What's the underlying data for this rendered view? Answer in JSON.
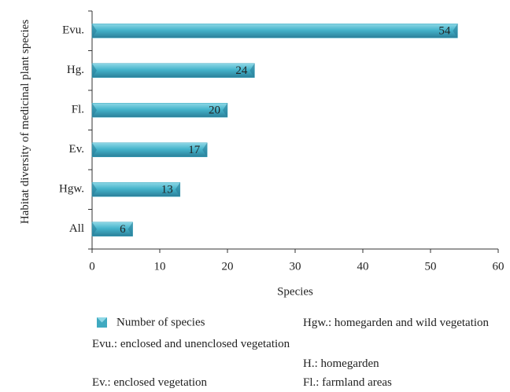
{
  "chart_data": {
    "type": "bar",
    "categories": [
      "Evu.",
      "Hg.",
      "Fl.",
      "Ev.",
      "Hgw.",
      "All"
    ],
    "series": [
      {
        "name": "Number of species",
        "color": "#3fa9c0",
        "values": [
          54,
          24,
          20,
          17,
          13,
          6
        ]
      }
    ],
    "xlim": [
      0,
      60
    ],
    "xticks": [
      0,
      10,
      20,
      30,
      40,
      50,
      60
    ],
    "x_label": "Species",
    "y_label": "Habitat diversity of medicinal plant species",
    "notes": [
      "Evu.: enclosed and unenclosed vegetation",
      "Ev.: enclosed vegetation",
      "Hgw.: homegarden and wild vegetation",
      "H.: homegarden",
      "Fl.: farmland areas"
    ]
  }
}
